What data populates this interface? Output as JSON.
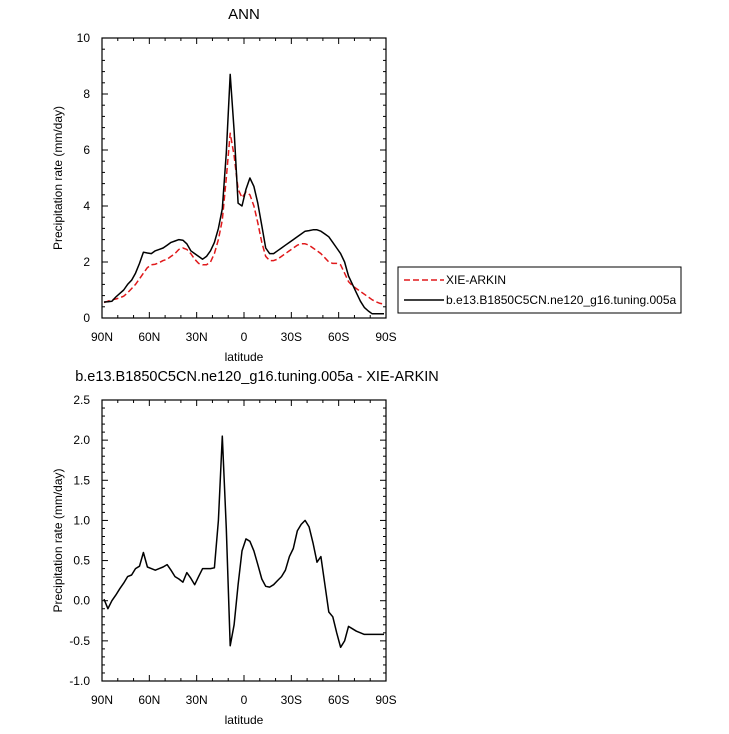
{
  "chart_data": [
    {
      "type": "line",
      "title": "ANN",
      "xlabel": "latitude",
      "ylabel": "Precipitation rate (mm/day)",
      "xlim": [
        90,
        -90
      ],
      "ylim": [
        0,
        10
      ],
      "x_ticks": [
        {
          "value": 90,
          "label": "90N"
        },
        {
          "value": 60,
          "label": "60N"
        },
        {
          "value": 30,
          "label": "30N"
        },
        {
          "value": 0,
          "label": "0"
        },
        {
          "value": -30,
          "label": "30S"
        },
        {
          "value": -60,
          "label": "60S"
        },
        {
          "value": -90,
          "label": "90S"
        }
      ],
      "y_ticks": [
        {
          "value": 0,
          "label": "0"
        },
        {
          "value": 2,
          "label": "2"
        },
        {
          "value": 4,
          "label": "4"
        },
        {
          "value": 6,
          "label": "6"
        },
        {
          "value": 8,
          "label": "8"
        },
        {
          "value": 10,
          "label": "10"
        }
      ],
      "legend": {
        "placement": "right",
        "entries": [
          "XIE-ARKIN",
          "b.e13.B1850C5CN.ne120_g16.tuning.005a"
        ]
      },
      "series": [
        {
          "name": "XIE-ARKIN",
          "color": "#e0191b",
          "dashed": true,
          "x": [
            88.75,
            86.25,
            83.75,
            81.25,
            78.75,
            76.25,
            73.75,
            71.25,
            68.75,
            66.25,
            63.75,
            61.25,
            58.75,
            56.25,
            53.75,
            51.25,
            48.75,
            46.25,
            43.75,
            41.25,
            38.75,
            36.25,
            33.75,
            31.25,
            28.75,
            26.25,
            23.75,
            21.25,
            18.75,
            16.25,
            13.75,
            11.25,
            8.75,
            6.25,
            3.75,
            1.25,
            -1.25,
            -3.75,
            -6.25,
            -8.75,
            -11.25,
            -13.75,
            -16.25,
            -18.75,
            -21.25,
            -23.75,
            -26.25,
            -28.75,
            -31.25,
            -33.75,
            -36.25,
            -38.75,
            -41.25,
            -43.75,
            -46.25,
            -48.75,
            -51.25,
            -53.75,
            -56.25,
            -58.75,
            -61.25,
            -63.75,
            -66.25,
            -68.75,
            -71.25,
            -73.75,
            -76.25,
            -78.75,
            -81.25,
            -83.75,
            -86.25,
            -88.75
          ],
          "values": [
            0.55,
            0.6,
            0.65,
            0.68,
            0.72,
            0.78,
            0.9,
            1.05,
            1.2,
            1.4,
            1.6,
            1.8,
            1.9,
            1.92,
            1.98,
            2.05,
            2.1,
            2.2,
            2.3,
            2.45,
            2.5,
            2.45,
            2.3,
            2.1,
            1.95,
            1.9,
            1.9,
            2.0,
            2.3,
            2.8,
            3.5,
            5.0,
            6.6,
            5.8,
            4.6,
            4.3,
            4.5,
            4.4,
            4.0,
            3.4,
            2.7,
            2.2,
            2.05,
            2.05,
            2.1,
            2.2,
            2.3,
            2.4,
            2.5,
            2.6,
            2.65,
            2.65,
            2.6,
            2.5,
            2.4,
            2.3,
            2.15,
            2.0,
            1.95,
            1.95,
            1.9,
            1.6,
            1.3,
            1.15,
            1.05,
            0.95,
            0.85,
            0.75,
            0.65,
            0.58,
            0.52,
            0.5
          ]
        },
        {
          "name": "b.e13.B1850C5CN.ne120_g16.tuning.005a",
          "color": "#000000",
          "dashed": false,
          "x": [
            88.75,
            86.25,
            83.75,
            81.25,
            78.75,
            76.25,
            73.75,
            71.25,
            68.75,
            66.25,
            63.75,
            61.25,
            58.75,
            56.25,
            53.75,
            51.25,
            48.75,
            46.25,
            43.75,
            41.25,
            38.75,
            36.25,
            33.75,
            31.25,
            28.75,
            26.25,
            23.75,
            21.25,
            18.75,
            16.25,
            13.75,
            11.25,
            8.75,
            6.25,
            3.75,
            1.25,
            -1.25,
            -3.75,
            -6.25,
            -8.75,
            -11.25,
            -13.75,
            -16.25,
            -18.75,
            -21.25,
            -23.75,
            -26.25,
            -28.75,
            -31.25,
            -33.75,
            -36.25,
            -38.75,
            -41.25,
            -43.75,
            -46.25,
            -48.75,
            -51.25,
            -53.75,
            -56.25,
            -58.75,
            -61.25,
            -63.75,
            -66.25,
            -68.75,
            -71.25,
            -73.75,
            -76.25,
            -78.75,
            -81.25,
            -83.75,
            -86.25,
            -88.75
          ],
          "values": [
            0.57,
            0.58,
            0.6,
            0.75,
            0.88,
            1.0,
            1.2,
            1.35,
            1.6,
            1.95,
            2.35,
            2.32,
            2.3,
            2.4,
            2.45,
            2.5,
            2.6,
            2.7,
            2.75,
            2.8,
            2.78,
            2.65,
            2.4,
            2.3,
            2.2,
            2.1,
            2.2,
            2.4,
            2.7,
            3.2,
            3.9,
            5.9,
            8.7,
            6.7,
            4.1,
            4.0,
            4.6,
            5.0,
            4.7,
            4.1,
            3.3,
            2.5,
            2.3,
            2.3,
            2.4,
            2.5,
            2.6,
            2.7,
            2.8,
            2.9,
            3.0,
            3.1,
            3.12,
            3.15,
            3.15,
            3.1,
            3.0,
            2.9,
            2.7,
            2.5,
            2.3,
            2.0,
            1.5,
            1.2,
            0.9,
            0.6,
            0.38,
            0.25,
            0.15,
            0.15,
            0.15,
            0.15
          ]
        }
      ]
    },
    {
      "type": "line",
      "title": "b.e13.B1850C5CN.ne120_g16.tuning.005a - XIE-ARKIN",
      "xlabel": "latitude",
      "ylabel": "Precipitation rate (mm/day)",
      "xlim": [
        90,
        -90
      ],
      "ylim": [
        -1.0,
        2.5
      ],
      "x_ticks": [
        {
          "value": 90,
          "label": "90N"
        },
        {
          "value": 60,
          "label": "60N"
        },
        {
          "value": 30,
          "label": "30N"
        },
        {
          "value": 0,
          "label": "0"
        },
        {
          "value": -30,
          "label": "30S"
        },
        {
          "value": -60,
          "label": "60S"
        },
        {
          "value": -90,
          "label": "90S"
        }
      ],
      "y_ticks": [
        {
          "value": -1.0,
          "label": "-1.0"
        },
        {
          "value": -0.5,
          "label": "-0.5"
        },
        {
          "value": 0.0,
          "label": "0.0"
        },
        {
          "value": 0.5,
          "label": "0.5"
        },
        {
          "value": 1.0,
          "label": "1.0"
        },
        {
          "value": 1.5,
          "label": "1.5"
        },
        {
          "value": 2.0,
          "label": "2.0"
        },
        {
          "value": 2.5,
          "label": "2.5"
        }
      ],
      "series": [
        {
          "color": "#000000",
          "dashed": false,
          "x": [
            88.75,
            86.25,
            83.75,
            81.25,
            78.75,
            76.25,
            73.75,
            71.25,
            68.75,
            66.25,
            63.75,
            61.25,
            58.75,
            56.25,
            53.75,
            51.25,
            48.75,
            46.25,
            43.75,
            41.25,
            38.75,
            36.25,
            33.75,
            31.25,
            28.75,
            26.25,
            23.75,
            21.25,
            18.75,
            16.25,
            13.75,
            11.25,
            8.75,
            6.25,
            3.75,
            1.25,
            -1.25,
            -3.75,
            -6.25,
            -8.75,
            -11.25,
            -13.75,
            -16.25,
            -18.75,
            -21.25,
            -23.75,
            -26.25,
            -28.75,
            -31.25,
            -33.75,
            -36.25,
            -38.75,
            -41.25,
            -43.75,
            -46.25,
            -48.75,
            -51.25,
            -53.75,
            -56.25,
            -58.75,
            -61.25,
            -63.75,
            -66.25,
            -68.75,
            -71.25,
            -73.75,
            -76.25,
            -78.75,
            -81.25,
            -83.75,
            -86.25,
            -88.75
          ],
          "values": [
            0.02,
            -0.1,
            0.0,
            0.07,
            0.15,
            0.22,
            0.3,
            0.32,
            0.4,
            0.43,
            0.6,
            0.42,
            0.4,
            0.38,
            0.4,
            0.42,
            0.45,
            0.38,
            0.3,
            0.27,
            0.23,
            0.35,
            0.28,
            0.2,
            0.3,
            0.4,
            0.4,
            0.4,
            0.41,
            1.0,
            2.05,
            0.9,
            -0.56,
            -0.3,
            0.2,
            0.62,
            0.77,
            0.74,
            0.62,
            0.45,
            0.27,
            0.18,
            0.17,
            0.2,
            0.25,
            0.3,
            0.38,
            0.55,
            0.65,
            0.87,
            0.95,
            1.0,
            0.92,
            0.72,
            0.48,
            0.55,
            0.2,
            -0.14,
            -0.2,
            -0.4,
            -0.58,
            -0.5,
            -0.32,
            -0.35,
            -0.38,
            -0.4,
            -0.42,
            -0.42,
            -0.42,
            -0.42,
            -0.42,
            -0.42
          ]
        }
      ]
    }
  ]
}
